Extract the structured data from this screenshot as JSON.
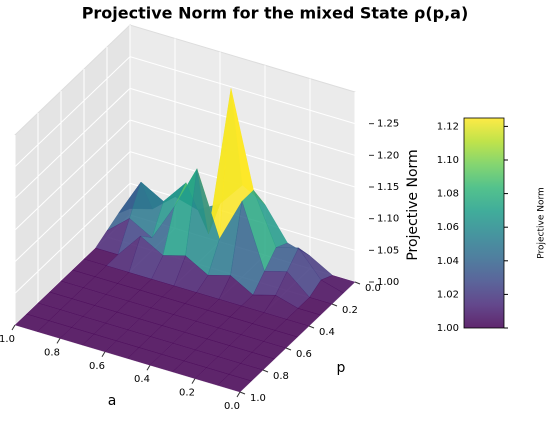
{
  "chart_data": {
    "type": "surface3d",
    "title": "Projective Norm for the mixed State ρ(p,a)",
    "xlabel": "a",
    "ylabel": "p",
    "zlabel": "Projective  Norm",
    "x": [
      0.0,
      0.1,
      0.2,
      0.3,
      0.4,
      0.5,
      0.6,
      0.7,
      0.8,
      0.9,
      1.0
    ],
    "y": [
      0.0,
      0.1,
      0.2,
      0.3,
      0.4,
      0.5,
      0.6,
      0.7,
      0.8,
      0.9,
      1.0
    ],
    "z": [
      [
        1.0,
        1.0,
        1.02,
        1.03,
        1.08,
        1.1,
        1.06,
        1.04,
        1.05,
        1.02,
        1.01
      ],
      [
        1.0,
        1.01,
        1.05,
        1.04,
        1.12,
        1.27,
        1.03,
        1.1,
        1.06,
        1.08,
        1.02
      ],
      [
        1.0,
        1.0,
        1.03,
        1.02,
        1.12,
        1.05,
        1.15,
        1.08,
        1.02,
        1.04,
        1.01
      ],
      [
        1.0,
        1.0,
        1.01,
        1.0,
        1.02,
        1.01,
        1.03,
        1.02,
        1.04,
        1.0,
        1.0
      ],
      [
        1.0,
        1.0,
        1.0,
        1.0,
        1.0,
        1.0,
        1.0,
        1.0,
        1.0,
        1.0,
        1.0
      ],
      [
        1.0,
        1.0,
        1.0,
        1.0,
        1.0,
        1.0,
        1.0,
        1.0,
        1.0,
        1.0,
        1.0
      ],
      [
        1.0,
        1.0,
        1.0,
        1.0,
        1.0,
        1.0,
        1.0,
        1.0,
        1.0,
        1.0,
        1.0
      ],
      [
        1.0,
        1.0,
        1.0,
        1.0,
        1.0,
        1.0,
        1.0,
        1.0,
        1.0,
        1.0,
        1.0
      ],
      [
        1.0,
        1.0,
        1.0,
        1.0,
        1.0,
        1.0,
        1.0,
        1.0,
        1.0,
        1.0,
        1.0
      ],
      [
        1.0,
        1.0,
        1.0,
        1.0,
        1.0,
        1.0,
        1.0,
        1.0,
        1.0,
        1.0,
        1.0
      ],
      [
        1.0,
        1.0,
        1.0,
        1.0,
        1.0,
        1.0,
        1.0,
        1.0,
        1.0,
        1.0,
        1.0
      ]
    ],
    "xlim": [
      0.0,
      1.0
    ],
    "ylim": [
      0.0,
      1.0
    ],
    "zlim": [
      1.0,
      1.3
    ],
    "xticks": [
      {
        "value": 1.0,
        "label": "1.0"
      },
      {
        "value": 0.8,
        "label": "0.8"
      },
      {
        "value": 0.6,
        "label": "0.6"
      },
      {
        "value": 0.4,
        "label": "0.4"
      },
      {
        "value": 0.2,
        "label": "0.2"
      },
      {
        "value": 0.0,
        "label": "0.0"
      }
    ],
    "yticks": [
      {
        "value": 0.0,
        "label": "0.0"
      },
      {
        "value": 0.2,
        "label": "0.2"
      },
      {
        "value": 0.4,
        "label": "0.4"
      },
      {
        "value": 0.6,
        "label": "0.6"
      },
      {
        "value": 0.8,
        "label": "0.8"
      },
      {
        "value": 1.0,
        "label": "1.0"
      }
    ],
    "zticks": [
      {
        "value": 1.0,
        "label": "1.00"
      },
      {
        "value": 1.05,
        "label": "1.05"
      },
      {
        "value": 1.1,
        "label": "1.10"
      },
      {
        "value": 1.15,
        "label": "1.15"
      },
      {
        "value": 1.2,
        "label": "1.20"
      },
      {
        "value": 1.25,
        "label": "1.25"
      }
    ],
    "colormap": "viridis",
    "clim": [
      1.0,
      1.125
    ],
    "colorbar_label": "Projective Norm",
    "colorbar_ticks": [
      {
        "value": 1.0,
        "label": "1.00"
      },
      {
        "value": 1.02,
        "label": "1.02"
      },
      {
        "value": 1.04,
        "label": "1.04"
      },
      {
        "value": 1.06,
        "label": "1.06"
      },
      {
        "value": 1.08,
        "label": "1.08"
      },
      {
        "value": 1.1,
        "label": "1.10"
      },
      {
        "value": 1.12,
        "label": "1.12"
      }
    ],
    "grid": true
  }
}
